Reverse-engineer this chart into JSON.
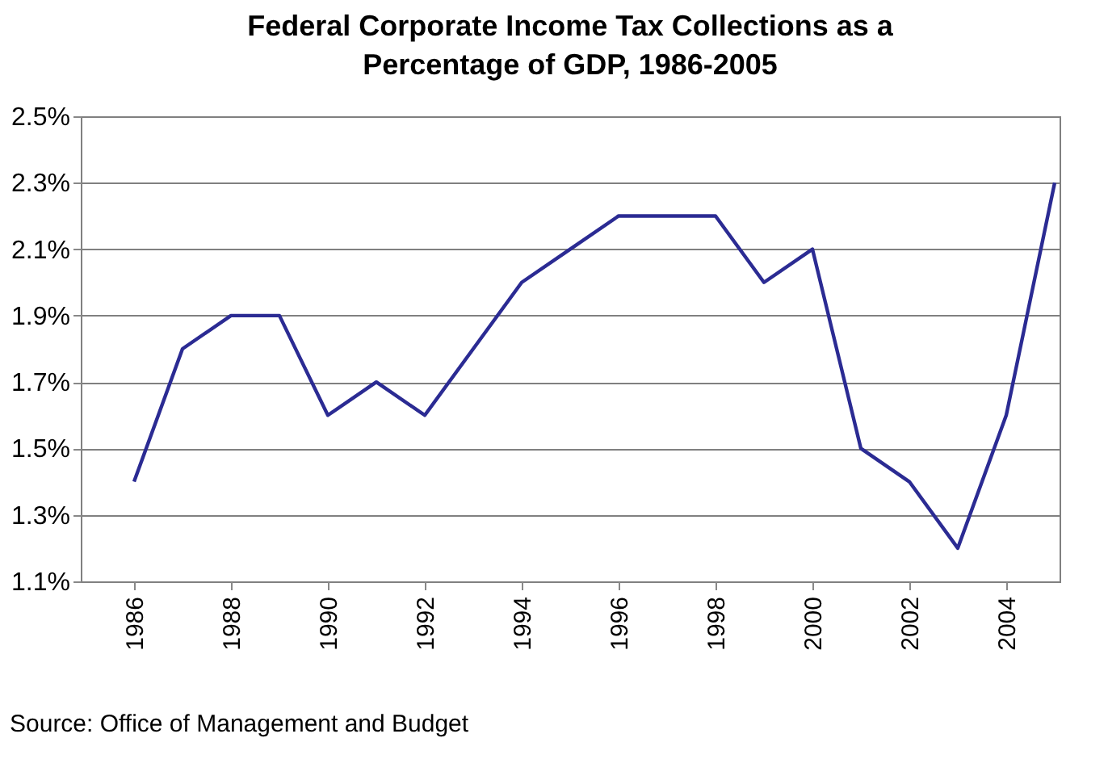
{
  "chart_data": {
    "type": "line",
    "title": "Federal Corporate Income Tax Collections as a Percentage of GDP, 1986-2005",
    "x": [
      1986,
      1987,
      1988,
      1989,
      1990,
      1991,
      1992,
      1993,
      1994,
      1995,
      1996,
      1997,
      1998,
      1999,
      2000,
      2001,
      2002,
      2003,
      2004,
      2005
    ],
    "series": [
      {
        "color": "#2b2b93",
        "values": [
          1.4,
          1.8,
          1.9,
          1.9,
          1.6,
          1.7,
          1.6,
          1.8,
          2.0,
          2.1,
          2.2,
          2.2,
          2.2,
          2.0,
          2.1,
          1.5,
          1.4,
          1.2,
          1.6,
          2.3
        ]
      }
    ],
    "xlim": [
      1984.9,
      2005.1
    ],
    "xticks": [
      1986,
      1988,
      1990,
      1992,
      1994,
      1996,
      1998,
      2000,
      2002,
      2004
    ],
    "ylim": [
      1.1,
      2.5
    ],
    "yticks": [
      {
        "value": 1.1,
        "label": "1.1%"
      },
      {
        "value": 1.3,
        "label": "1.3%"
      },
      {
        "value": 1.5,
        "label": "1.5%"
      },
      {
        "value": 1.7,
        "label": "1.7%"
      },
      {
        "value": 1.9,
        "label": "1.9%"
      },
      {
        "value": 2.1,
        "label": "2.1%"
      },
      {
        "value": 2.3,
        "label": "2.3%"
      },
      {
        "value": 2.5,
        "label": "2.5%"
      }
    ],
    "grid": "y",
    "marker": "none",
    "line_style": "solid",
    "annotations": [
      "Source: Office of Management and Budget"
    ]
  }
}
